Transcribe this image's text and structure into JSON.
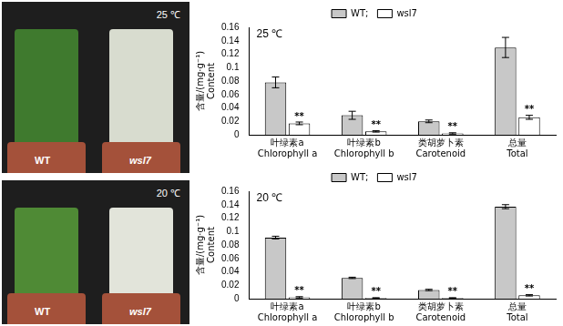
{
  "chart_data": [
    {
      "type": "bar",
      "title": "25 ℃",
      "categories": [
        "叶绿素a\nChlorophyll a",
        "叶绿素b\nChlorophyll b",
        "类胡萝卜素\nCarotenoid",
        "总量\nTotal"
      ],
      "series": [
        {
          "name": "WT;",
          "color": "#c8c8c8",
          "values": [
            0.078,
            0.029,
            0.02,
            0.13
          ],
          "errors": [
            0.008,
            0.006,
            0.002,
            0.015
          ]
        },
        {
          "name": "wsl7",
          "color": "#ffffff",
          "values": [
            0.017,
            0.005,
            0.002,
            0.026
          ],
          "errors": [
            0.002,
            0.001,
            0.001,
            0.003
          ],
          "annotations": [
            "**",
            "**",
            "**",
            "**"
          ]
        }
      ],
      "y_label": [
        "含量/(mg·g⁻¹)",
        "Content"
      ],
      "ylim": [
        0,
        0.16
      ],
      "yticks": [
        0,
        0.02,
        0.04,
        0.06,
        0.08,
        0.1,
        0.12,
        0.14,
        0.16
      ],
      "grid": false,
      "legend": "top"
    },
    {
      "type": "bar",
      "title": "20 ℃",
      "categories": [
        "叶绿素a\nChlorophyll a",
        "叶绿素b\nChlorophyll b",
        "类胡萝卜素\nCarotenoid",
        "总量\nTotal"
      ],
      "series": [
        {
          "name": "WT;",
          "color": "#c8c8c8",
          "values": [
            0.091,
            0.031,
            0.013,
            0.137
          ],
          "errors": [
            0.002,
            0.001,
            0.001,
            0.003
          ]
        },
        {
          "name": "wsl7",
          "color": "#ffffff",
          "values": [
            0.002,
            0.001,
            0.001,
            0.005
          ],
          "errors": [
            0.001,
            0.0005,
            0.0005,
            0.001
          ],
          "annotations": [
            "**",
            "**",
            "**",
            "**"
          ]
        }
      ],
      "y_label": [
        "含量/(mg·g⁻¹)",
        "Content"
      ],
      "ylim": [
        0,
        0.16
      ],
      "yticks": [
        0,
        0.02,
        0.04,
        0.06,
        0.08,
        0.1,
        0.12,
        0.14,
        0.16
      ],
      "grid": false,
      "legend": "top"
    }
  ],
  "photos": [
    {
      "label": "25 ℃",
      "plants": [
        "WT",
        "wsl7"
      ]
    },
    {
      "label": "20 ℃",
      "plants": [
        "WT",
        "wsl7"
      ]
    }
  ]
}
